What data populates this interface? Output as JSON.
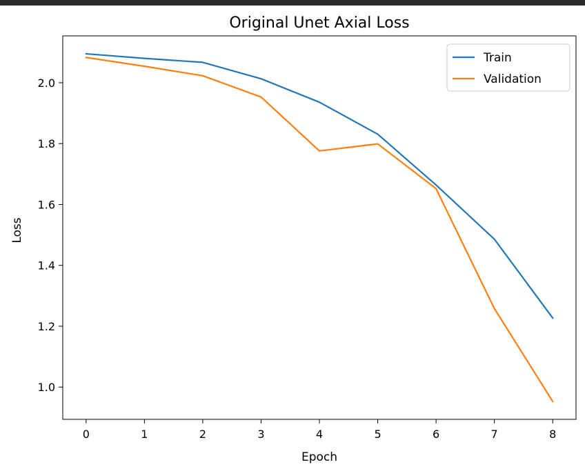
{
  "chart_data": {
    "type": "line",
    "title": "Original Unet Axial Loss",
    "xlabel": "Epoch",
    "ylabel": "Loss",
    "x": [
      0,
      1,
      2,
      3,
      4,
      5,
      6,
      7,
      8
    ],
    "xlim": [
      -0.4,
      8.4
    ],
    "ylim": [
      0.894,
      2.154
    ],
    "xticks": [
      0,
      1,
      2,
      3,
      4,
      5,
      6,
      7,
      8
    ],
    "yticks": [
      1.0,
      1.2,
      1.4,
      1.6,
      1.8,
      2.0
    ],
    "grid": false,
    "legend_position": "top-right",
    "series": [
      {
        "name": "Train",
        "color": "#1f77b4",
        "values": [
          2.095,
          2.08,
          2.067,
          2.013,
          1.936,
          1.831,
          1.664,
          1.486,
          1.227
        ]
      },
      {
        "name": "Validation",
        "color": "#ff7f0e",
        "values": [
          2.083,
          2.054,
          2.023,
          1.953,
          1.776,
          1.799,
          1.652,
          1.258,
          0.953
        ]
      }
    ]
  }
}
